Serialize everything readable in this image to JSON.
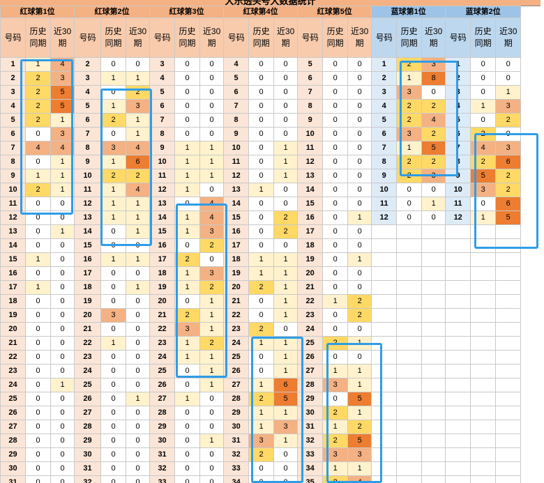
{
  "title": "大乐透头号大数据统计",
  "groups": [
    {
      "label": "红球第1位",
      "color": "red"
    },
    {
      "label": "红球第2位",
      "color": "red"
    },
    {
      "label": "红球第3位",
      "color": "red"
    },
    {
      "label": "红球第4位",
      "color": "red"
    },
    {
      "label": "红球第5位",
      "color": "red"
    },
    {
      "label": "蓝球第1位",
      "color": "blue"
    },
    {
      "label": "蓝球第2位",
      "color": "blue"
    }
  ],
  "sub_headers": [
    "号码",
    "历史同期",
    "近30期"
  ],
  "tables": [
    {
      "rows": [
        [
          1,
          1,
          4
        ],
        [
          2,
          2,
          3
        ],
        [
          3,
          2,
          5
        ],
        [
          4,
          2,
          5
        ],
        [
          5,
          2,
          1
        ],
        [
          6,
          0,
          3
        ],
        [
          7,
          4,
          4
        ],
        [
          8,
          0,
          1
        ],
        [
          9,
          1,
          1
        ],
        [
          10,
          2,
          1
        ],
        [
          11,
          0,
          0
        ],
        [
          12,
          0,
          0
        ],
        [
          13,
          0,
          1
        ],
        [
          14,
          0,
          0
        ],
        [
          15,
          1,
          0
        ],
        [
          16,
          0,
          0
        ],
        [
          17,
          1,
          0
        ],
        [
          18,
          0,
          0
        ],
        [
          19,
          0,
          0
        ],
        [
          20,
          0,
          0
        ],
        [
          21,
          0,
          0
        ],
        [
          22,
          0,
          0
        ],
        [
          23,
          0,
          0
        ],
        [
          24,
          0,
          1
        ],
        [
          25,
          0,
          0
        ],
        [
          26,
          0,
          0
        ],
        [
          27,
          0,
          0
        ],
        [
          28,
          0,
          0
        ],
        [
          29,
          0,
          0
        ],
        [
          30,
          0,
          0
        ],
        [
          31,
          0,
          0
        ]
      ]
    },
    {
      "rows": [
        [
          2,
          0,
          0
        ],
        [
          3,
          1,
          1
        ],
        [
          4,
          0,
          2
        ],
        [
          5,
          1,
          3
        ],
        [
          6,
          2,
          1
        ],
        [
          7,
          0,
          1
        ],
        [
          8,
          3,
          4
        ],
        [
          9,
          1,
          6
        ],
        [
          10,
          2,
          2
        ],
        [
          11,
          1,
          4
        ],
        [
          12,
          1,
          1
        ],
        [
          13,
          1,
          1
        ],
        [
          14,
          0,
          1
        ],
        [
          15,
          0,
          0
        ],
        [
          16,
          1,
          1
        ],
        [
          17,
          0,
          0
        ],
        [
          18,
          0,
          1
        ],
        [
          19,
          0,
          0
        ],
        [
          20,
          3,
          0
        ],
        [
          21,
          0,
          0
        ],
        [
          22,
          1,
          0
        ],
        [
          23,
          0,
          0
        ],
        [
          24,
          0,
          0
        ],
        [
          25,
          0,
          0
        ],
        [
          26,
          0,
          1
        ],
        [
          27,
          0,
          0
        ],
        [
          28,
          0,
          0
        ],
        [
          29,
          0,
          0
        ],
        [
          30,
          0,
          0
        ],
        [
          31,
          0,
          0
        ],
        [
          32,
          0,
          0
        ]
      ]
    },
    {
      "rows": [
        [
          3,
          0,
          0
        ],
        [
          4,
          0,
          0
        ],
        [
          5,
          0,
          0
        ],
        [
          6,
          0,
          0
        ],
        [
          7,
          0,
          0
        ],
        [
          8,
          0,
          0
        ],
        [
          9,
          1,
          1
        ],
        [
          10,
          1,
          1
        ],
        [
          11,
          1,
          1
        ],
        [
          12,
          1,
          0
        ],
        [
          13,
          0,
          4
        ],
        [
          14,
          1,
          4
        ],
        [
          15,
          1,
          3
        ],
        [
          16,
          0,
          2
        ],
        [
          17,
          2,
          0
        ],
        [
          18,
          1,
          3
        ],
        [
          19,
          1,
          2
        ],
        [
          20,
          0,
          1
        ],
        [
          21,
          2,
          1
        ],
        [
          22,
          3,
          1
        ],
        [
          23,
          1,
          2
        ],
        [
          24,
          1,
          1
        ],
        [
          25,
          0,
          1
        ],
        [
          26,
          0,
          1
        ],
        [
          27,
          1,
          0
        ],
        [
          28,
          0,
          0
        ],
        [
          29,
          0,
          0
        ],
        [
          30,
          0,
          1
        ],
        [
          31,
          0,
          0
        ],
        [
          32,
          0,
          0
        ],
        [
          33,
          0,
          0
        ]
      ]
    },
    {
      "rows": [
        [
          4,
          0,
          0
        ],
        [
          5,
          0,
          0
        ],
        [
          6,
          0,
          0
        ],
        [
          7,
          0,
          0
        ],
        [
          8,
          0,
          0
        ],
        [
          9,
          0,
          0
        ],
        [
          10,
          0,
          1
        ],
        [
          11,
          0,
          1
        ],
        [
          12,
          0,
          1
        ],
        [
          13,
          1,
          0
        ],
        [
          14,
          0,
          0
        ],
        [
          15,
          0,
          2
        ],
        [
          16,
          0,
          2
        ],
        [
          17,
          0,
          0
        ],
        [
          18,
          1,
          1
        ],
        [
          19,
          1,
          1
        ],
        [
          20,
          2,
          1
        ],
        [
          21,
          0,
          1
        ],
        [
          22,
          0,
          1
        ],
        [
          23,
          2,
          0
        ],
        [
          24,
          1,
          1
        ],
        [
          25,
          0,
          1
        ],
        [
          26,
          0,
          1
        ],
        [
          27,
          1,
          6
        ],
        [
          28,
          2,
          5
        ],
        [
          29,
          1,
          1
        ],
        [
          30,
          1,
          3
        ],
        [
          31,
          3,
          1
        ],
        [
          32,
          2,
          0
        ],
        [
          33,
          0,
          0
        ],
        [
          34,
          0,
          0
        ]
      ]
    },
    {
      "rows": [
        [
          5,
          0,
          0
        ],
        [
          6,
          0,
          0
        ],
        [
          7,
          0,
          0
        ],
        [
          8,
          0,
          0
        ],
        [
          9,
          0,
          0
        ],
        [
          10,
          0,
          0
        ],
        [
          11,
          0,
          0
        ],
        [
          12,
          0,
          0
        ],
        [
          13,
          0,
          0
        ],
        [
          14,
          0,
          0
        ],
        [
          15,
          0,
          0
        ],
        [
          16,
          0,
          1
        ],
        [
          17,
          0,
          0
        ],
        [
          18,
          0,
          0
        ],
        [
          19,
          0,
          1
        ],
        [
          20,
          0,
          0
        ],
        [
          21,
          0,
          0
        ],
        [
          22,
          1,
          2
        ],
        [
          23,
          0,
          2
        ],
        [
          24,
          0,
          0
        ],
        [
          25,
          2,
          1
        ],
        [
          26,
          0,
          0
        ],
        [
          27,
          1,
          1
        ],
        [
          28,
          3,
          1
        ],
        [
          29,
          0,
          5
        ],
        [
          30,
          2,
          1
        ],
        [
          31,
          1,
          2
        ],
        [
          32,
          2,
          5
        ],
        [
          33,
          3,
          3
        ],
        [
          34,
          1,
          1
        ],
        [
          35,
          2,
          4
        ]
      ]
    },
    {
      "rows": [
        [
          1,
          2,
          3
        ],
        [
          2,
          1,
          8
        ],
        [
          3,
          3,
          0
        ],
        [
          4,
          2,
          2
        ],
        [
          5,
          2,
          4
        ],
        [
          6,
          3,
          2
        ],
        [
          7,
          1,
          5
        ],
        [
          8,
          2,
          2
        ],
        [
          9,
          2,
          3
        ],
        [
          10,
          0,
          0
        ],
        [
          11,
          0,
          1
        ],
        [
          12,
          0,
          0
        ]
      ]
    },
    {
      "rows": [
        [
          1,
          0,
          0
        ],
        [
          2,
          0,
          0
        ],
        [
          3,
          0,
          1
        ],
        [
          4,
          1,
          3
        ],
        [
          5,
          0,
          2
        ],
        [
          6,
          2,
          0
        ],
        [
          7,
          4,
          3
        ],
        [
          8,
          2,
          6
        ],
        [
          9,
          5,
          2
        ],
        [
          10,
          3,
          2
        ],
        [
          11,
          0,
          6
        ],
        [
          12,
          1,
          5
        ]
      ]
    }
  ]
}
